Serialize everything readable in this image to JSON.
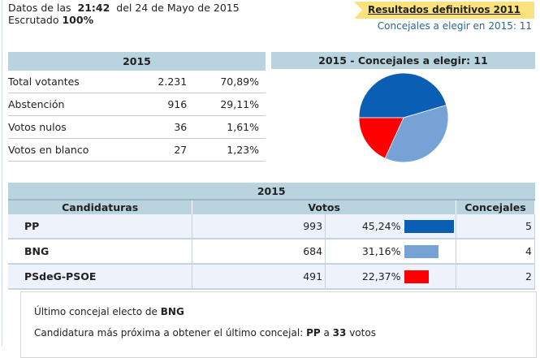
{
  "header": {
    "data_label": "Datos de las",
    "time": "21:42",
    "date": "del 24 de Mayo de 2015",
    "scrutinized_label": "Escrutado",
    "scrutinized": "100%",
    "previous_results_link": "Resultados definitivos 2011",
    "councillors_to_elect": "Concejales a elegir en 2015: 11"
  },
  "summary": {
    "title": "2015",
    "rows": [
      {
        "label": "Total votantes",
        "value": "2.231",
        "pct": "70,89%"
      },
      {
        "label": "Abstención",
        "value": "916",
        "pct": "29,11%"
      },
      {
        "label": "Votos nulos",
        "value": "36",
        "pct": "1,61%"
      },
      {
        "label": "Votos en blanco",
        "value": "27",
        "pct": "1,23%"
      }
    ]
  },
  "chart_data": {
    "type": "pie",
    "title": "2015 - Concejales a elegir: 11",
    "categories": [
      "PP",
      "BNG",
      "PSdeG-PSOE"
    ],
    "values": [
      5,
      4,
      2
    ],
    "colors": [
      "#0a5fb4",
      "#77a2d6",
      "#ff0000"
    ]
  },
  "results": {
    "title": "2015",
    "columns": [
      "Candidaturas",
      "Votos",
      "Concejales"
    ],
    "rows": [
      {
        "party": "PP",
        "votes": "993",
        "pct": "45,24%",
        "pct_value": 45.24,
        "seats": "5",
        "color": "#0a5fb4"
      },
      {
        "party": "BNG",
        "votes": "684",
        "pct": "31,16%",
        "pct_value": 31.16,
        "seats": "4",
        "color": "#77a2d6"
      },
      {
        "party": "PSdeG-PSOE",
        "votes": "491",
        "pct": "22,37%",
        "pct_value": 22.37,
        "seats": "2",
        "color": "#ff0000"
      }
    ]
  },
  "notes": {
    "last_elected_label": "Último concejal electo de",
    "last_elected_party": "BNG",
    "closest_label": "Candidatura más próxima a obtener el último concejal:",
    "closest_party": "PP",
    "closest_connector": "a",
    "closest_votes": "33",
    "closest_unit": "votos"
  }
}
